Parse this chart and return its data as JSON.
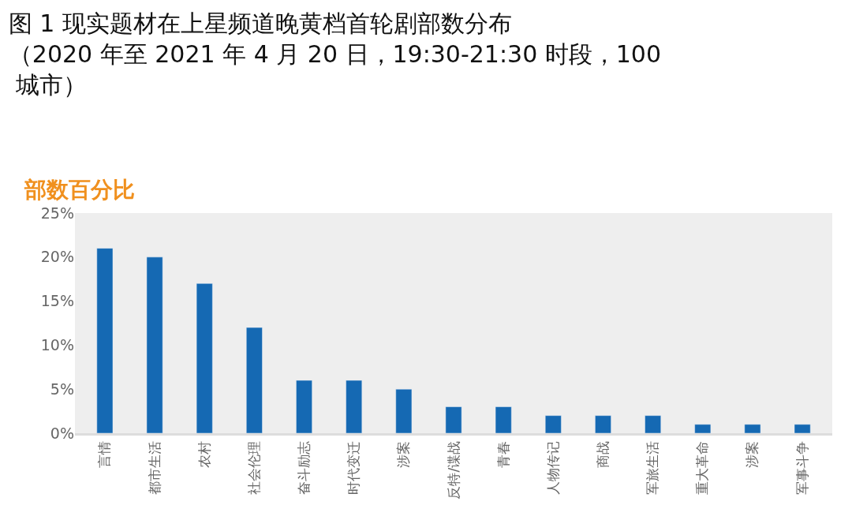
{
  "chart_data": {
    "type": "bar",
    "title": "图 1 现实题材在上星频道晚黄档首轮剧部数分布",
    "subtitle": "（2020 年至 2021 年 4 月 20 日，19:30-21:30 时段，100 城市）",
    "ylabel": "部数百分比",
    "categories": [
      "言情",
      "都市生活",
      "农村",
      "社会伦理",
      "奋斗励志",
      "时代变迁",
      "涉案",
      "反特/谍战",
      "青春",
      "人物传记",
      "商战",
      "军旅生活",
      "重大革命",
      "涉案",
      "军事斗争"
    ],
    "values": [
      21,
      20,
      17,
      12,
      6,
      6,
      5,
      3,
      3,
      2,
      2,
      2,
      1,
      1,
      1
    ],
    "color": "#1569b3",
    "ylim": [
      0,
      25
    ],
    "yticks": [
      {
        "value": 0,
        "label": "0%"
      },
      {
        "value": 5,
        "label": "5%"
      },
      {
        "value": 10,
        "label": "10%"
      },
      {
        "value": 15,
        "label": "15%"
      },
      {
        "value": 20,
        "label": "20%"
      },
      {
        "value": 25,
        "label": "25%"
      }
    ],
    "grid": false,
    "legend": false
  }
}
